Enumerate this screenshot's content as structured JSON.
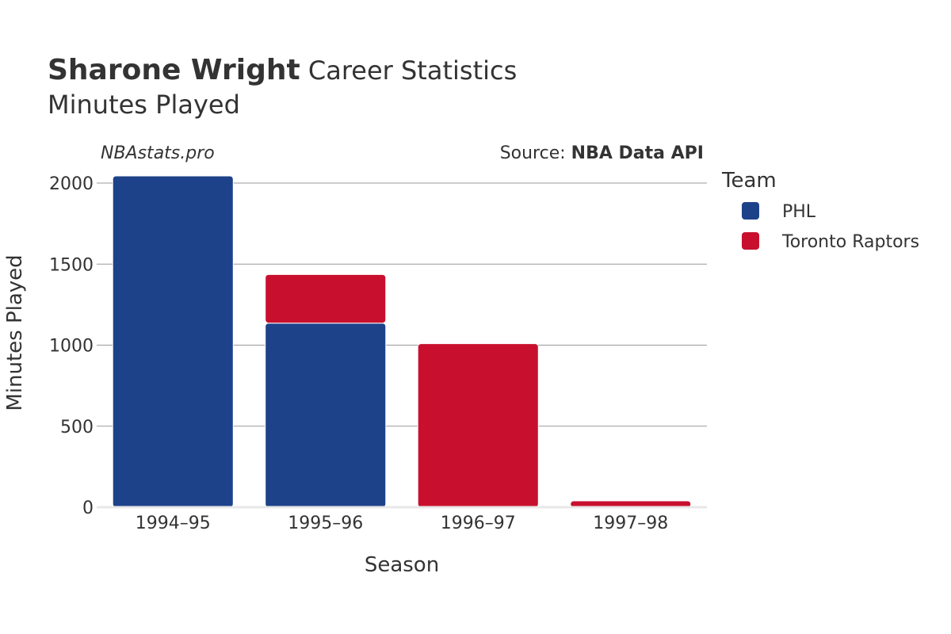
{
  "title": {
    "bold": "Sharone Wright",
    "rest": " Career Statistics"
  },
  "subtitle": "Minutes Played",
  "brand": "NBAstats.pro",
  "source": {
    "prefix": "Source: ",
    "name": "NBA Data API"
  },
  "legend": {
    "title": "Team"
  },
  "chart_data": {
    "type": "bar",
    "stacked": true,
    "categories": [
      "1994–95",
      "1995–96",
      "1996–97",
      "1997–98"
    ],
    "series": [
      {
        "name": "PHL",
        "color": "#1d428a",
        "values": [
          2044,
          1136,
          0,
          0
        ]
      },
      {
        "name": "Toronto Raptors",
        "color": "#c8102e",
        "values": [
          0,
          300,
          1009,
          39
        ]
      }
    ],
    "xlabel": "Season",
    "ylabel": "Minutes Played",
    "ylim": [
      0,
      2000
    ],
    "yticks": [
      0,
      500,
      1000,
      1500,
      2000
    ],
    "grid": true,
    "legend_position": "right"
  }
}
